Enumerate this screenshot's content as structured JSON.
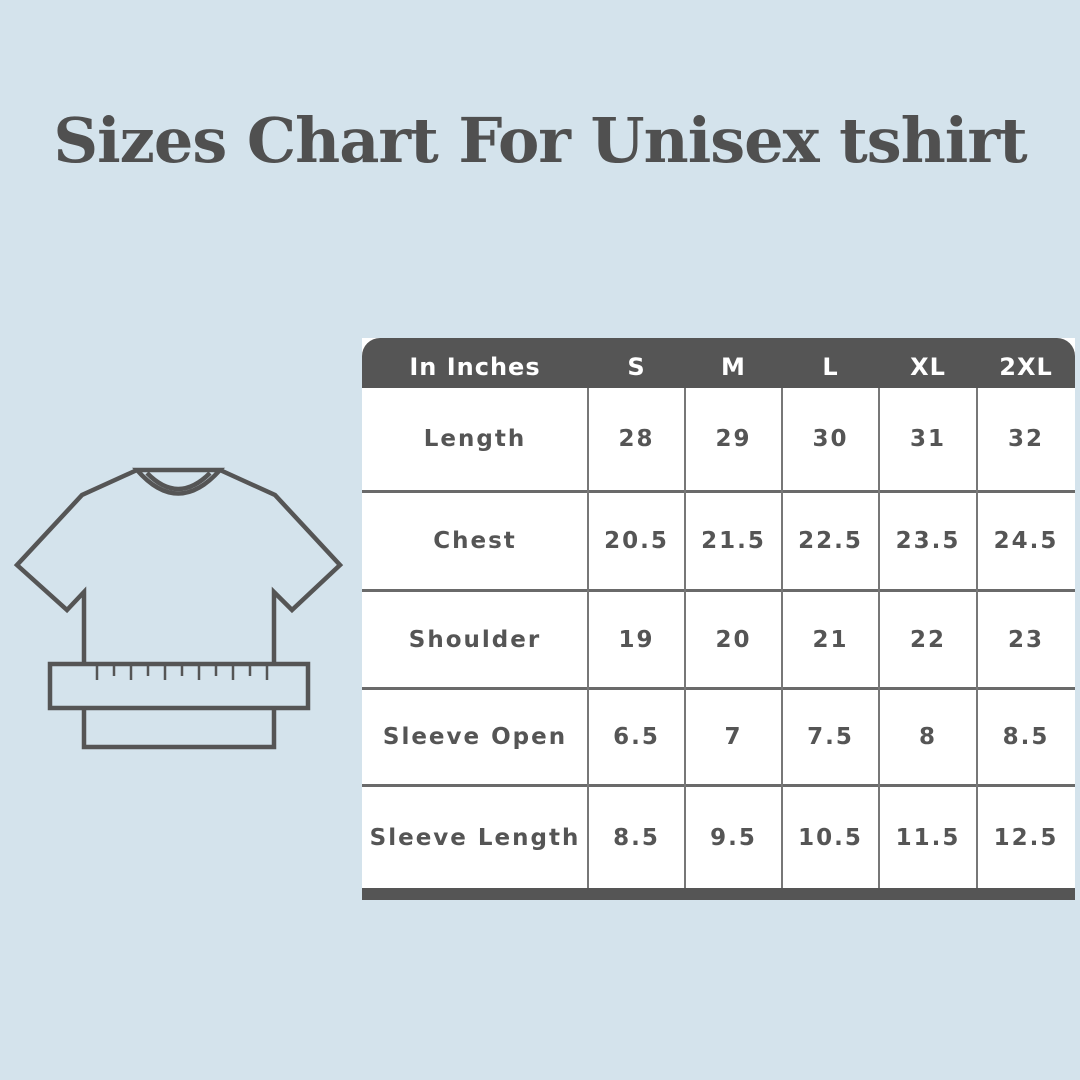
{
  "title": "Sizes Chart For Unisex tshirt",
  "icon": "tshirt-with-measuring-tape-icon",
  "colors": {
    "background": "#d4e3ec",
    "header": "#555555",
    "text": "#555555"
  },
  "chart_data": {
    "type": "table",
    "columns": [
      "In Inches",
      "S",
      "M",
      "L",
      "XL",
      "2XL"
    ],
    "rows": [
      {
        "label": "Length",
        "values": [
          "28",
          "29",
          "30",
          "31",
          "32"
        ]
      },
      {
        "label": "Chest",
        "values": [
          "20.5",
          "21.5",
          "22.5",
          "23.5",
          "24.5"
        ]
      },
      {
        "label": "Shoulder",
        "values": [
          "19",
          "20",
          "21",
          "22",
          "23"
        ]
      },
      {
        "label": "Sleeve Open",
        "values": [
          "6.5",
          "7",
          "7.5",
          "8",
          "8.5"
        ]
      },
      {
        "label": "Sleeve Length",
        "values": [
          "8.5",
          "9.5",
          "10.5",
          "11.5",
          "12.5"
        ]
      }
    ]
  }
}
